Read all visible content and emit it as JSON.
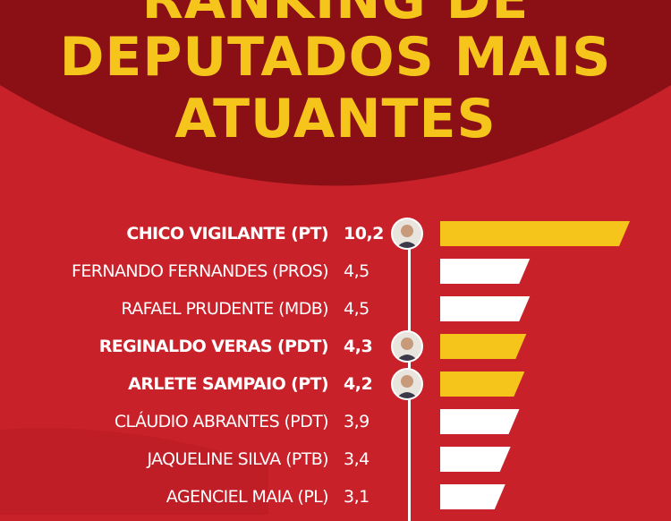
{
  "title": {
    "line1": "RANKING DE",
    "line2": "DEPUTADOS MAIS",
    "line3": "ATUANTES"
  },
  "colors": {
    "background": "#c8212a",
    "arc": "#8b1016",
    "highlight": "#f5c51c",
    "bar": "#ffffff"
  },
  "chart_data": {
    "type": "bar",
    "orientation": "horizontal",
    "categories": [
      "CHICO VIGILANTE (PT)",
      "FERNANDO FERNANDES (PROS)",
      "RAFAEL PRUDENTE (MDB)",
      "REGINALDO VERAS (PDT)",
      "ARLETE SAMPAIO (PT)",
      "CLÁUDIO ABRANTES (PDT)",
      "JAQUELINE SILVA (PTB)",
      "AGENCIEL MAIA (PL)"
    ],
    "labels": [
      "10,2",
      "4,5",
      "4,5",
      "4,3",
      "4,2",
      "3,9",
      "3,4",
      "3,1"
    ],
    "values": [
      10.2,
      4.5,
      4.5,
      4.3,
      4.2,
      3.9,
      3.4,
      3.1
    ],
    "highlighted": [
      true,
      false,
      false,
      true,
      true,
      false,
      false,
      false
    ],
    "avatars": [
      true,
      false,
      false,
      true,
      true,
      false,
      false,
      false
    ]
  }
}
